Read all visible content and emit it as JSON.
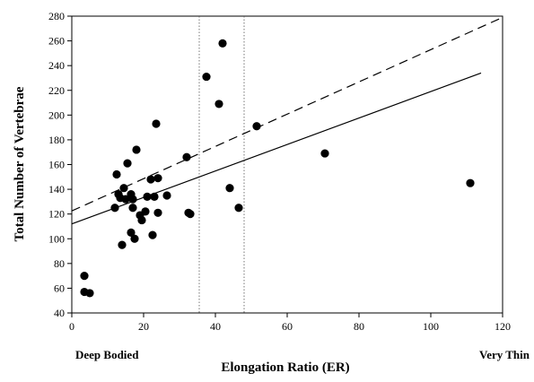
{
  "chart_data": {
    "type": "scatter",
    "xlabel": "Elongation Ratio (ER)",
    "ylabel": "Total Number of Vertebrae",
    "xlim": [
      0,
      120
    ],
    "ylim": [
      40,
      280
    ],
    "x_ticks": [
      0,
      20,
      40,
      60,
      80,
      100,
      120
    ],
    "y_ticks": [
      40,
      60,
      80,
      100,
      120,
      140,
      160,
      180,
      200,
      220,
      240,
      260,
      280
    ],
    "x_end_labels": {
      "left": "Deep Bodied",
      "right": "Very Thin"
    },
    "grid": false,
    "legend": "none",
    "points": [
      {
        "x": 3.5,
        "y": 70
      },
      {
        "x": 3.5,
        "y": 57
      },
      {
        "x": 5,
        "y": 56
      },
      {
        "x": 12,
        "y": 125
      },
      {
        "x": 12.5,
        "y": 152
      },
      {
        "x": 13,
        "y": 136
      },
      {
        "x": 13.5,
        "y": 133
      },
      {
        "x": 14,
        "y": 95
      },
      {
        "x": 14.5,
        "y": 141
      },
      {
        "x": 15,
        "y": 132
      },
      {
        "x": 15.5,
        "y": 161
      },
      {
        "x": 16.5,
        "y": 136
      },
      {
        "x": 16.5,
        "y": 105
      },
      {
        "x": 17,
        "y": 132
      },
      {
        "x": 17,
        "y": 125
      },
      {
        "x": 17.5,
        "y": 100
      },
      {
        "x": 18,
        "y": 172
      },
      {
        "x": 19,
        "y": 119
      },
      {
        "x": 19.5,
        "y": 115
      },
      {
        "x": 20.5,
        "y": 122
      },
      {
        "x": 21,
        "y": 134
      },
      {
        "x": 22,
        "y": 148
      },
      {
        "x": 22.5,
        "y": 103
      },
      {
        "x": 23,
        "y": 134
      },
      {
        "x": 23.5,
        "y": 193
      },
      {
        "x": 24,
        "y": 121
      },
      {
        "x": 24,
        "y": 149
      },
      {
        "x": 26.5,
        "y": 135
      },
      {
        "x": 32,
        "y": 166
      },
      {
        "x": 32.5,
        "y": 121
      },
      {
        "x": 33,
        "y": 120
      },
      {
        "x": 37.5,
        "y": 231
      },
      {
        "x": 41,
        "y": 209
      },
      {
        "x": 42,
        "y": 258
      },
      {
        "x": 44,
        "y": 141
      },
      {
        "x": 46.5,
        "y": 125
      },
      {
        "x": 51.5,
        "y": 191
      },
      {
        "x": 70.5,
        "y": 169
      },
      {
        "x": 111,
        "y": 145
      }
    ],
    "lines": [
      {
        "style": "dashed",
        "x": [
          0,
          120
        ],
        "y": [
          122.5,
          279
        ]
      },
      {
        "style": "solid",
        "x": [
          0,
          114
        ],
        "y": [
          112,
          234
        ]
      }
    ],
    "vertical_reference_lines": {
      "style": "dotted",
      "x": [
        35.5,
        48
      ]
    }
  }
}
